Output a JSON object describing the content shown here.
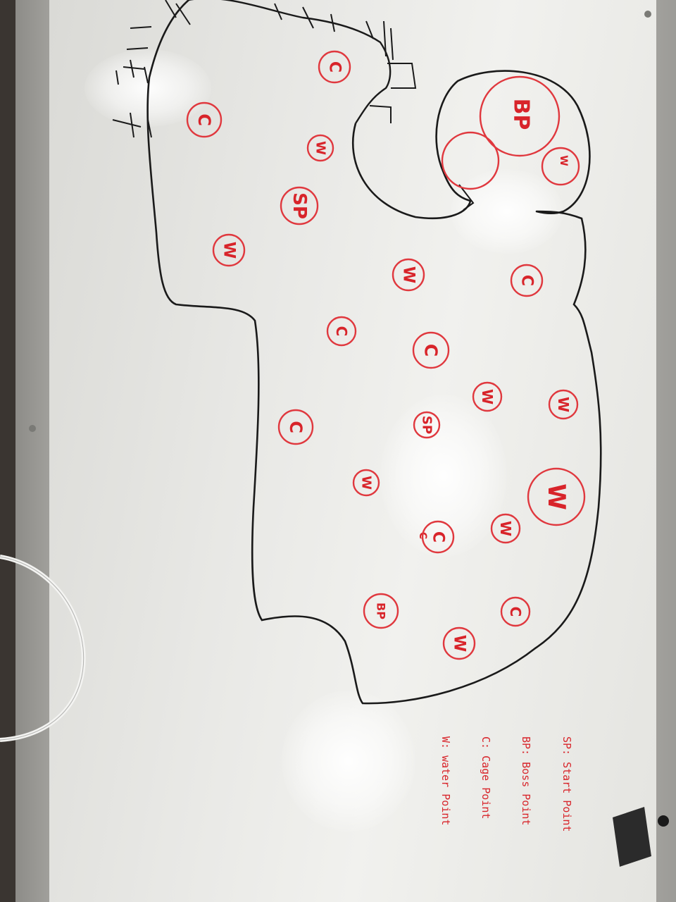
{
  "board": {
    "legend": [
      {
        "key": "SP",
        "text": "SP: Start Point"
      },
      {
        "key": "BP",
        "text": "BP: Boss Point"
      },
      {
        "key": "C",
        "text": "C: Cage Point"
      },
      {
        "key": "W",
        "text": "W: water Point"
      }
    ],
    "markers": [
      {
        "label": "C",
        "kind": "cage"
      },
      {
        "label": "C",
        "kind": "cage"
      },
      {
        "label": "W",
        "kind": "water"
      },
      {
        "label": "SP",
        "kind": "start"
      },
      {
        "label": "W",
        "kind": "water"
      },
      {
        "label": "BP",
        "kind": "boss"
      },
      {
        "label": "C",
        "kind": "cage"
      },
      {
        "label": "W",
        "kind": "water"
      },
      {
        "label": "C",
        "kind": "cage"
      },
      {
        "label": "W",
        "kind": "water"
      },
      {
        "label": "C",
        "kind": "cage"
      },
      {
        "label": "W",
        "kind": "water"
      },
      {
        "label": "C",
        "kind": "cage"
      },
      {
        "label": "SP",
        "kind": "start"
      },
      {
        "label": "W",
        "kind": "water"
      },
      {
        "label": "W",
        "kind": "water"
      },
      {
        "label": "C",
        "kind": "cage"
      },
      {
        "label": "W",
        "kind": "water"
      },
      {
        "label": "C",
        "kind": "cage"
      },
      {
        "label": "BP",
        "kind": "boss"
      },
      {
        "label": "W",
        "kind": "water"
      },
      {
        "label": "C",
        "kind": "cage"
      },
      {
        "label": "W",
        "kind": "water"
      }
    ],
    "colors": {
      "marker": "#d8242a",
      "outline": "#1a1a1a",
      "board": "#ececea"
    }
  }
}
